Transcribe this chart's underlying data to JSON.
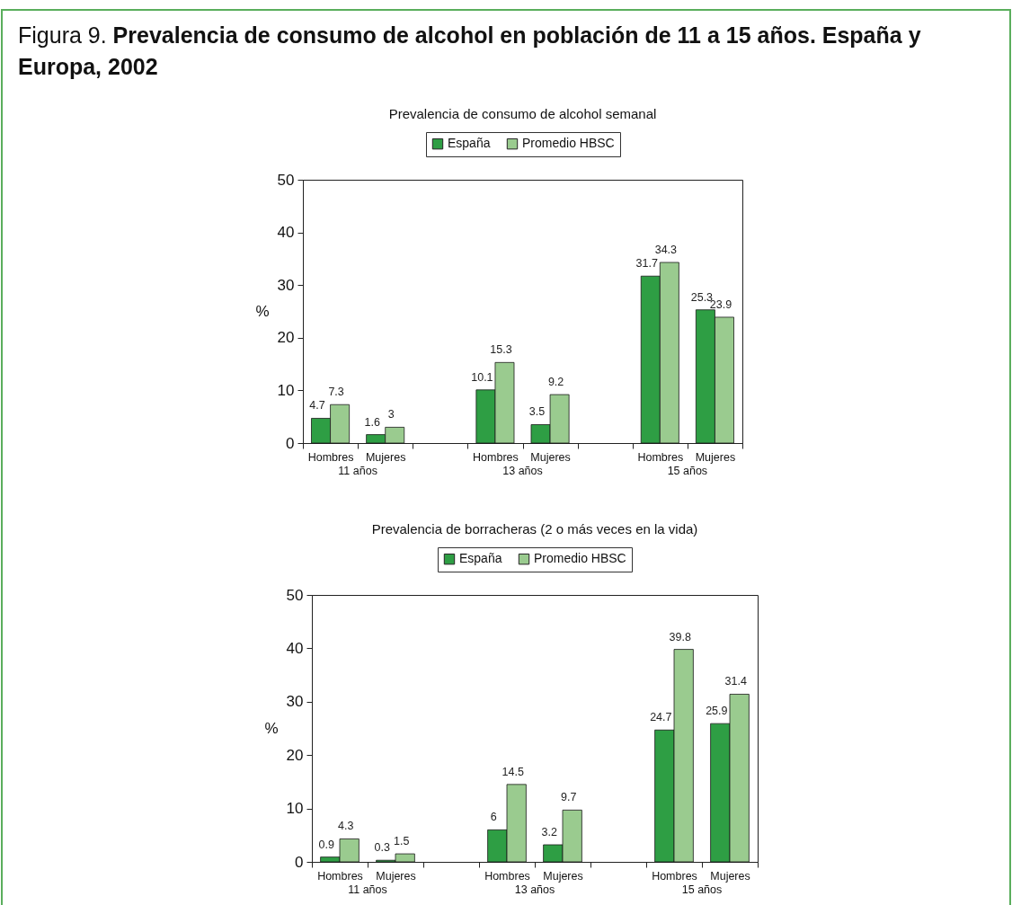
{
  "chart_data": [
    {
      "type": "bar",
      "title": "Figura 9. Prevalencia de consumo de alcohol en población de 11 a 15 años. España y Europa, 2002",
      "subtitle": "Prevalencia de consumo de alcohol semanal",
      "ylabel": "%",
      "categories": [
        "Hombres",
        "Mujeres",
        null,
        "Hombres",
        "Mujeres",
        null,
        "Hombres",
        "Mujeres"
      ],
      "series": [
        {
          "name": "España",
          "color": "#2e9e44",
          "values": [
            4.7,
            1.6,
            null,
            10.1,
            3.5,
            null,
            31.7,
            25.3
          ]
        },
        {
          "name": "Promedio HBSC",
          "color": "#9acb8f",
          "values": [
            7.3,
            3,
            null,
            15.3,
            9.2,
            null,
            34.3,
            23.9
          ]
        }
      ],
      "ylim": [
        0,
        50
      ],
      "yticks": [
        0,
        10,
        20,
        30,
        40,
        50
      ],
      "legend": "top",
      "data_labels": true,
      "annotations": [
        "11 años",
        "13 años",
        "15 años"
      ]
    },
    {
      "type": "bar",
      "title": "Prevalencia de borracheras (2 o más veces en la vida)",
      "ylabel": "%",
      "categories": [
        "Hombres",
        "Mujeres",
        null,
        "Hombres",
        "Mujeres",
        null,
        "Hombres",
        "Mujeres"
      ],
      "series": [
        {
          "name": "España",
          "color": "#2e9e44",
          "values": [
            0.9,
            0.3,
            null,
            6,
            3.2,
            null,
            24.7,
            25.9
          ]
        },
        {
          "name": "Promedio HBSC",
          "color": "#9acb8f",
          "values": [
            4.3,
            1.5,
            null,
            14.5,
            9.7,
            null,
            39.8,
            31.4
          ]
        }
      ],
      "ylim": [
        0,
        50
      ],
      "yticks": [
        0,
        10,
        20,
        30,
        40,
        50
      ],
      "legend": "top",
      "data_labels": true,
      "annotations": [
        "11 años",
        "13 años",
        "15 años"
      ]
    }
  ]
}
